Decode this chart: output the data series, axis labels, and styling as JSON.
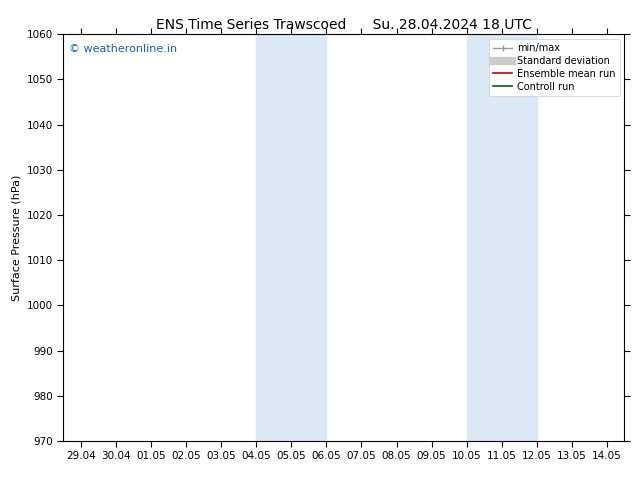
{
  "title": "ENS Time Series Trawscoed",
  "title_right": "Su. 28.04.2024 18 UTC",
  "ylabel": "Surface Pressure (hPa)",
  "ylim": [
    970,
    1060
  ],
  "yticks": [
    970,
    980,
    990,
    1000,
    1010,
    1020,
    1030,
    1040,
    1050,
    1060
  ],
  "xlim": [
    0,
    15
  ],
  "xtick_labels": [
    "29.04",
    "30.04",
    "01.05",
    "02.05",
    "03.05",
    "04.05",
    "05.05",
    "06.05",
    "07.05",
    "08.05",
    "09.05",
    "10.05",
    "11.05",
    "12.05",
    "13.05",
    "14.05"
  ],
  "watermark": "© weatheronline.in",
  "watermark_color": "#1a5fb4",
  "shaded_bands": [
    {
      "x_start": 5,
      "x_end": 7
    },
    {
      "x_start": 11,
      "x_end": 13
    }
  ],
  "shaded_color": "#dce9f5",
  "spine_color": "#000000",
  "bg_color": "#ffffff",
  "title_fontsize": 10,
  "axis_fontsize": 8,
  "tick_fontsize": 7.5,
  "legend_fontsize": 7,
  "watermark_fontsize": 8
}
